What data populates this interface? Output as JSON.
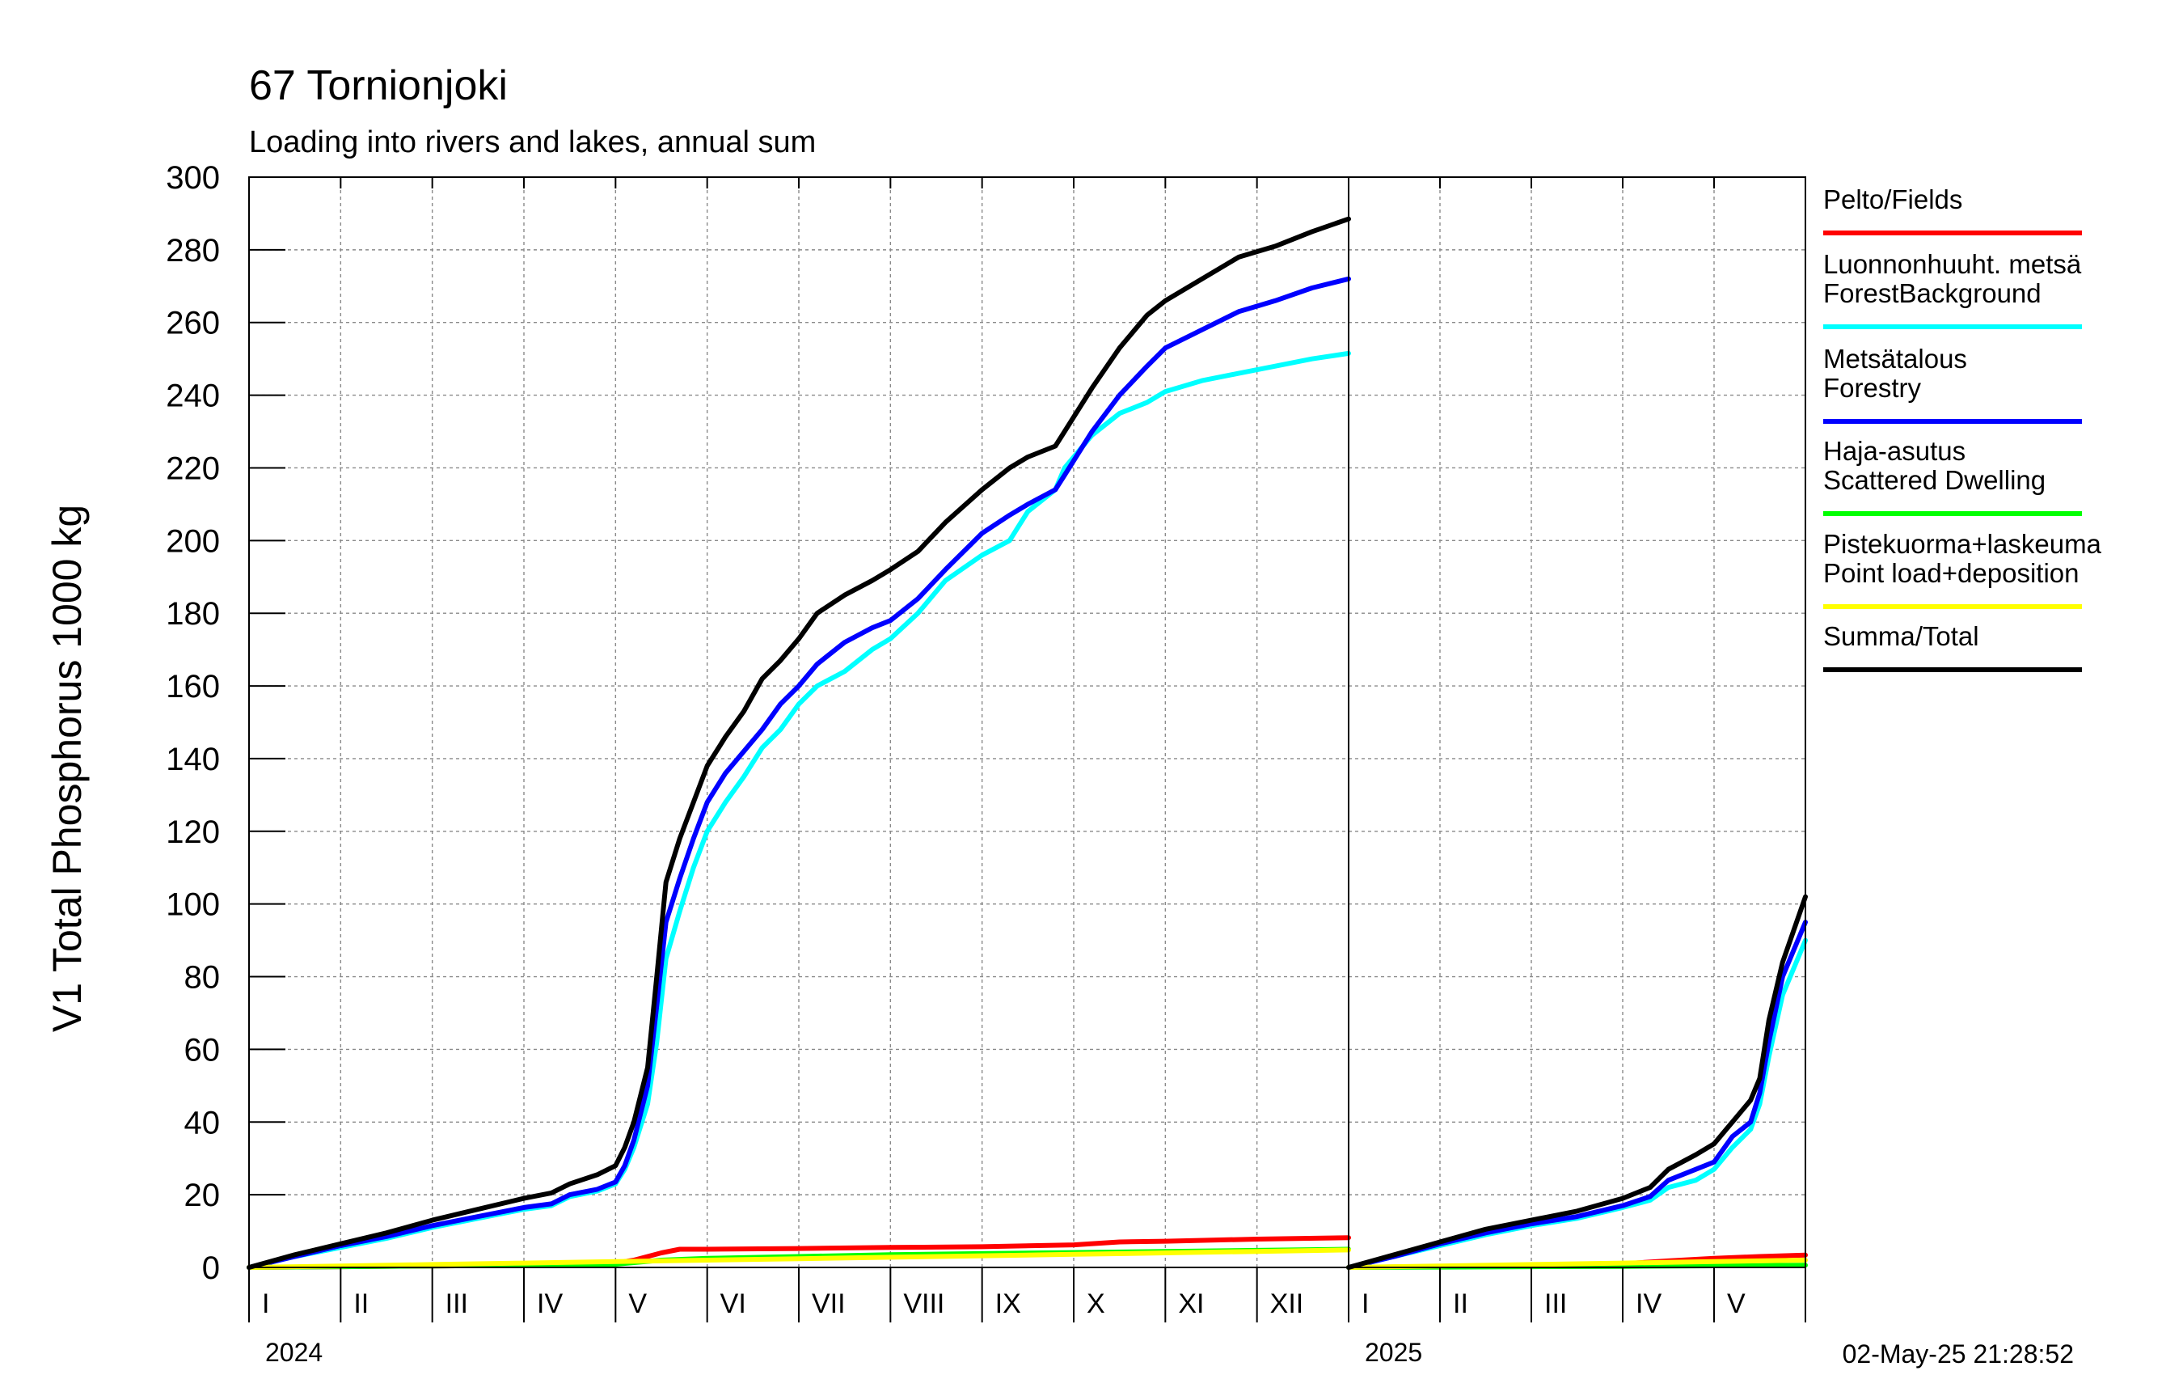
{
  "chart_data": {
    "type": "line",
    "title": "67 Tornionjoki",
    "subtitle": "Loading into rivers and lakes, annual sum",
    "xlabel": "",
    "ylabel": "V1 Total Phosphorus 1000 kg",
    "ylim": [
      0,
      300
    ],
    "yticks": [
      0,
      20,
      40,
      60,
      80,
      100,
      120,
      140,
      160,
      180,
      200,
      220,
      240,
      260,
      280,
      300
    ],
    "grid": true,
    "legend_position": "right",
    "timestamp": "02-May-25 21:28:52",
    "panels": [
      {
        "year": "2024",
        "months": [
          "I",
          "II",
          "III",
          "IV",
          "V",
          "VI",
          "VII",
          "VIII",
          "IX",
          "X",
          "XI",
          "XII"
        ],
        "xrange": [
          0,
          12
        ]
      },
      {
        "year": "2025",
        "months": [
          "I",
          "II",
          "III",
          "IV",
          "V"
        ],
        "xrange": [
          0,
          5
        ]
      }
    ],
    "series": [
      {
        "name": "Pelto/Fields",
        "color": "#ff0000",
        "panels": [
          [
            [
              0,
              0
            ],
            [
              1,
              0.2
            ],
            [
              2,
              0.4
            ],
            [
              3,
              0.6
            ],
            [
              4,
              1.2
            ],
            [
              4.2,
              2
            ],
            [
              4.5,
              4
            ],
            [
              4.7,
              5
            ],
            [
              5,
              5
            ],
            [
              6,
              5.2
            ],
            [
              7,
              5.5
            ],
            [
              8,
              5.7
            ],
            [
              9,
              6.2
            ],
            [
              9.5,
              7
            ],
            [
              10,
              7.2
            ],
            [
              11,
              7.8
            ],
            [
              12,
              8.2
            ]
          ],
          [
            [
              0,
              0
            ],
            [
              1,
              0.3
            ],
            [
              2,
              0.6
            ],
            [
              3,
              1
            ],
            [
              3.5,
              1.8
            ],
            [
              4,
              2.5
            ],
            [
              4.5,
              3
            ],
            [
              5,
              3.4
            ]
          ]
        ]
      },
      {
        "name": "Luonnonhuuht. metsä\nForestBackground",
        "color": "#00ffff",
        "panels": [
          [
            [
              0,
              0
            ],
            [
              0.5,
              3
            ],
            [
              1,
              5.5
            ],
            [
              1.5,
              8
            ],
            [
              2,
              11
            ],
            [
              2.5,
              13.5
            ],
            [
              3,
              16
            ],
            [
              3.3,
              17
            ],
            [
              3.5,
              19.5
            ],
            [
              3.8,
              21
            ],
            [
              4,
              23
            ],
            [
              4.1,
              27
            ],
            [
              4.2,
              33
            ],
            [
              4.35,
              45
            ],
            [
              4.45,
              62
            ],
            [
              4.55,
              85
            ],
            [
              4.7,
              98
            ],
            [
              4.85,
              110
            ],
            [
              5,
              120
            ],
            [
              5.2,
              128
            ],
            [
              5.4,
              135
            ],
            [
              5.6,
              143
            ],
            [
              5.8,
              148
            ],
            [
              6,
              155
            ],
            [
              6.2,
              160
            ],
            [
              6.5,
              164
            ],
            [
              6.8,
              170
            ],
            [
              7,
              173
            ],
            [
              7.3,
              180
            ],
            [
              7.6,
              189
            ],
            [
              8,
              196
            ],
            [
              8.3,
              200
            ],
            [
              8.5,
              208
            ],
            [
              8.8,
              214
            ],
            [
              8.9,
              220
            ],
            [
              9.2,
              229
            ],
            [
              9.5,
              235
            ],
            [
              9.8,
              238
            ],
            [
              10,
              241
            ],
            [
              10.4,
              244
            ],
            [
              10.8,
              246
            ],
            [
              11.2,
              248
            ],
            [
              11.6,
              250
            ],
            [
              12,
              251.5
            ]
          ],
          [
            [
              0,
              0
            ],
            [
              0.5,
              3
            ],
            [
              1,
              6
            ],
            [
              1.5,
              9
            ],
            [
              2,
              11.5
            ],
            [
              2.5,
              13.5
            ],
            [
              3,
              16.5
            ],
            [
              3.3,
              18.5
            ],
            [
              3.5,
              22
            ],
            [
              3.8,
              24
            ],
            [
              4,
              27
            ],
            [
              4.2,
              33
            ],
            [
              4.4,
              38
            ],
            [
              4.5,
              45
            ],
            [
              4.6,
              58
            ],
            [
              4.75,
              75
            ],
            [
              5,
              90
            ]
          ]
        ]
      },
      {
        "name": "Metsätalous\nForestry",
        "color": "#0000ff",
        "panels": [
          [
            [
              0,
              0
            ],
            [
              0.5,
              3
            ],
            [
              1,
              6
            ],
            [
              1.5,
              8.5
            ],
            [
              2,
              11.5
            ],
            [
              2.5,
              14
            ],
            [
              3,
              16.5
            ],
            [
              3.3,
              17.5
            ],
            [
              3.5,
              20
            ],
            [
              3.8,
              21.5
            ],
            [
              4,
              23.5
            ],
            [
              4.1,
              28
            ],
            [
              4.2,
              35
            ],
            [
              4.35,
              50
            ],
            [
              4.45,
              72
            ],
            [
              4.55,
              95
            ],
            [
              4.7,
              107
            ],
            [
              4.85,
              118
            ],
            [
              5,
              128
            ],
            [
              5.2,
              136
            ],
            [
              5.4,
              142
            ],
            [
              5.6,
              148
            ],
            [
              5.8,
              155
            ],
            [
              6,
              160
            ],
            [
              6.2,
              166
            ],
            [
              6.5,
              172
            ],
            [
              6.8,
              176
            ],
            [
              7,
              178
            ],
            [
              7.3,
              184
            ],
            [
              7.6,
              192
            ],
            [
              8,
              202
            ],
            [
              8.3,
              207
            ],
            [
              8.5,
              210
            ],
            [
              8.8,
              214
            ],
            [
              8.9,
              218
            ],
            [
              9.2,
              230
            ],
            [
              9.5,
              240
            ],
            [
              9.8,
              248
            ],
            [
              10,
              253
            ],
            [
              10.4,
              258
            ],
            [
              10.8,
              263
            ],
            [
              11.2,
              266
            ],
            [
              11.6,
              269.5
            ],
            [
              12,
              272
            ]
          ],
          [
            [
              0,
              0
            ],
            [
              0.5,
              3
            ],
            [
              1,
              6.5
            ],
            [
              1.5,
              9.5
            ],
            [
              2,
              12
            ],
            [
              2.5,
              14
            ],
            [
              3,
              17
            ],
            [
              3.3,
              19.5
            ],
            [
              3.5,
              24
            ],
            [
              3.8,
              27
            ],
            [
              4,
              29
            ],
            [
              4.2,
              36
            ],
            [
              4.4,
              40
            ],
            [
              4.5,
              48
            ],
            [
              4.6,
              62
            ],
            [
              4.75,
              80
            ],
            [
              5,
              95
            ]
          ]
        ]
      },
      {
        "name": "Haja-asutus\nScattered Dwelling",
        "color": "#00ff00",
        "panels": [
          [
            [
              0,
              0
            ],
            [
              1,
              0.2
            ],
            [
              2,
              0.4
            ],
            [
              3,
              0.6
            ],
            [
              4,
              0.9
            ],
            [
              4.5,
              2
            ],
            [
              5,
              2.5
            ],
            [
              6,
              3
            ],
            [
              7,
              3.5
            ],
            [
              8,
              3.8
            ],
            [
              9,
              4.1
            ],
            [
              10,
              4.4
            ],
            [
              11,
              4.7
            ],
            [
              12,
              5
            ]
          ],
          [
            [
              0,
              0
            ],
            [
              1,
              0.1
            ],
            [
              2,
              0.2
            ],
            [
              3,
              0.3
            ],
            [
              4,
              0.45
            ],
            [
              5,
              0.6
            ]
          ]
        ]
      },
      {
        "name": "Pistekuorma+laskeuma\nPoint load+deposition",
        "color": "#ffff00",
        "panels": [
          [
            [
              0,
              0
            ],
            [
              1,
              0.4
            ],
            [
              2,
              0.8
            ],
            [
              3,
              1.2
            ],
            [
              4,
              1.6
            ],
            [
              5,
              2
            ],
            [
              6,
              2.4
            ],
            [
              7,
              2.8
            ],
            [
              8,
              3.2
            ],
            [
              9,
              3.6
            ],
            [
              10,
              4
            ],
            [
              11,
              4.4
            ],
            [
              12,
              4.8
            ]
          ],
          [
            [
              0,
              0
            ],
            [
              1,
              0.4
            ],
            [
              2,
              0.8
            ],
            [
              3,
              1.2
            ],
            [
              4,
              1.6
            ],
            [
              5,
              2
            ]
          ]
        ]
      },
      {
        "name": "Summa/Total",
        "color": "#000000",
        "panels": [
          [
            [
              0,
              0
            ],
            [
              0.5,
              3.5
            ],
            [
              1,
              6.5
            ],
            [
              1.5,
              9.5
            ],
            [
              2,
              13
            ],
            [
              2.5,
              16
            ],
            [
              3,
              19
            ],
            [
              3.3,
              20.5
            ],
            [
              3.5,
              23
            ],
            [
              3.8,
              25.5
            ],
            [
              4,
              28
            ],
            [
              4.1,
              33
            ],
            [
              4.2,
              40
            ],
            [
              4.35,
              55
            ],
            [
              4.45,
              80
            ],
            [
              4.55,
              106
            ],
            [
              4.7,
              118
            ],
            [
              4.85,
              128
            ],
            [
              5,
              138
            ],
            [
              5.2,
              146
            ],
            [
              5.4,
              153
            ],
            [
              5.6,
              162
            ],
            [
              5.8,
              167
            ],
            [
              6,
              173
            ],
            [
              6.2,
              180
            ],
            [
              6.5,
              185
            ],
            [
              6.8,
              189
            ],
            [
              7,
              192
            ],
            [
              7.3,
              197
            ],
            [
              7.6,
              205
            ],
            [
              8,
              214
            ],
            [
              8.3,
              220
            ],
            [
              8.5,
              223
            ],
            [
              8.8,
              226
            ],
            [
              8.9,
              230
            ],
            [
              9.2,
              242
            ],
            [
              9.5,
              253
            ],
            [
              9.8,
              262
            ],
            [
              10,
              266
            ],
            [
              10.4,
              272
            ],
            [
              10.8,
              278
            ],
            [
              11.2,
              281
            ],
            [
              11.6,
              285
            ],
            [
              12,
              288.5
            ]
          ],
          [
            [
              0,
              0
            ],
            [
              0.5,
              3.5
            ],
            [
              1,
              7
            ],
            [
              1.5,
              10.5
            ],
            [
              2,
              13
            ],
            [
              2.5,
              15.5
            ],
            [
              3,
              19
            ],
            [
              3.3,
              22
            ],
            [
              3.5,
              27
            ],
            [
              3.8,
              31
            ],
            [
              4,
              34
            ],
            [
              4.2,
              40
            ],
            [
              4.4,
              46
            ],
            [
              4.5,
              52
            ],
            [
              4.6,
              68
            ],
            [
              4.75,
              84
            ],
            [
              5,
              102
            ]
          ]
        ]
      }
    ]
  }
}
